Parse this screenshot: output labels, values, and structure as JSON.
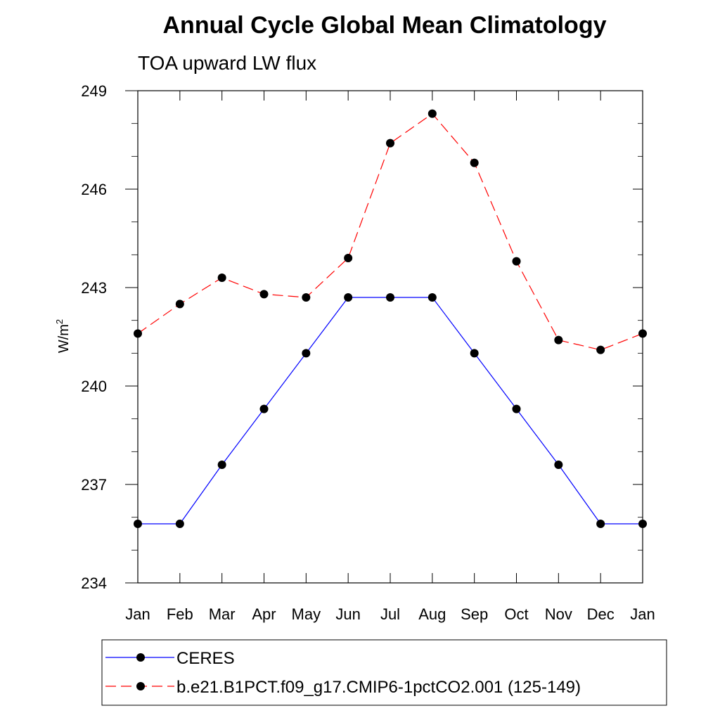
{
  "chart_data": {
    "type": "line",
    "title": "Annual Cycle Global Mean Climatology",
    "subtitle": "TOA upward LW flux",
    "ylabel": "W/m",
    "ylabel_superscript": "2",
    "xlabel": "",
    "categories": [
      "Jan",
      "Feb",
      "Mar",
      "Apr",
      "May",
      "Jun",
      "Jul",
      "Aug",
      "Sep",
      "Oct",
      "Nov",
      "Dec",
      "Jan"
    ],
    "ylim": [
      234,
      249
    ],
    "yticks": [
      234,
      237,
      240,
      243,
      246,
      249
    ],
    "ytick_labels": [
      "234",
      "237",
      "240",
      "243",
      "246",
      "249"
    ],
    "series": [
      {
        "name": "CERES",
        "color": "#0000ff",
        "dash": "solid",
        "values": [
          235.8,
          235.8,
          237.6,
          239.3,
          241.0,
          242.7,
          242.7,
          242.7,
          241.0,
          239.3,
          237.6,
          235.8,
          235.8
        ]
      },
      {
        "name": "b.e21.B1PCT.f09_g17.CMIP6-1pctCO2.001 (125-149)",
        "color": "#ff0000",
        "dash": "dashed",
        "values": [
          241.6,
          242.5,
          243.3,
          242.8,
          242.7,
          243.9,
          247.4,
          248.3,
          246.8,
          243.8,
          241.4,
          241.1,
          241.6
        ]
      }
    ],
    "legend_position": "bottom"
  }
}
